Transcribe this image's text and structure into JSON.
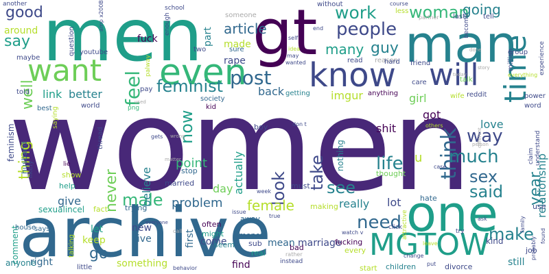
{
  "palette": {
    "purple": "#440154",
    "indigo": "#482878",
    "blue": "#3e4989",
    "slate": "#31688e",
    "teal": "#26828e",
    "green": "#1f9e89",
    "mint": "#35b779",
    "lime": "#6ece58",
    "yellow": "#b5de2b",
    "grey": "#aaaaaa"
  },
  "words": [
    {
      "text": "women",
      "color": "#482878",
      "weight": 100
    },
    {
      "text": "men",
      "color": "#1f9e89",
      "weight": 60
    },
    {
      "text": "archive",
      "color": "#31688e",
      "weight": 55
    },
    {
      "text": "gt",
      "color": "#440154",
      "weight": 52
    },
    {
      "text": "man",
      "color": "#26828e",
      "weight": 45
    },
    {
      "text": "one",
      "color": "#1f9e89",
      "weight": 44
    },
    {
      "text": "even",
      "color": "#35b779",
      "weight": 40
    },
    {
      "text": "want",
      "color": "#6ece58",
      "weight": 38
    },
    {
      "text": "know",
      "color": "#3e4989",
      "weight": 38
    },
    {
      "text": "will",
      "color": "#3e4989",
      "weight": 36
    },
    {
      "text": "time",
      "color": "#26828e",
      "weight": 36
    },
    {
      "text": "MGTOW",
      "color": "#1f9e89",
      "weight": 30
    },
    {
      "text": "post",
      "color": "#31688e",
      "weight": 24
    },
    {
      "text": "feel",
      "color": "#35b779",
      "weight": 22
    },
    {
      "text": "feminist",
      "color": "#26828e",
      "weight": 20
    },
    {
      "text": "people",
      "color": "#3e4989",
      "weight": 18
    },
    {
      "text": "woman",
      "color": "#35b779",
      "weight": 17
    },
    {
      "text": "work",
      "color": "#1f9e89",
      "weight": 17
    },
    {
      "text": "think",
      "color": "#31688e",
      "weight": 20
    },
    {
      "text": "life",
      "color": "#26828e",
      "weight": 18
    },
    {
      "text": "much",
      "color": "#26828e",
      "weight": 17
    },
    {
      "text": "way",
      "color": "#3e4989",
      "weight": 17
    },
    {
      "text": "sex",
      "color": "#31688e",
      "weight": 17
    },
    {
      "text": "said",
      "color": "#26828e",
      "weight": 16
    },
    {
      "text": "need",
      "color": "#31688e",
      "weight": 18
    },
    {
      "text": "see",
      "color": "#26828e",
      "weight": 16
    },
    {
      "text": "look",
      "color": "#3e4989",
      "weight": 16
    },
    {
      "text": "take",
      "color": "#3e4989",
      "weight": 16
    },
    {
      "text": "male",
      "color": "#35b779",
      "weight": 16
    },
    {
      "text": "female",
      "color": "#b5de2b",
      "weight": 15
    },
    {
      "text": "now",
      "color": "#1f9e89",
      "weight": 16
    },
    {
      "text": "never",
      "color": "#6ece58",
      "weight": 16
    },
    {
      "text": "make",
      "color": "#26828e",
      "weight": 16
    },
    {
      "text": "year",
      "color": "#26828e",
      "weight": 15
    },
    {
      "text": "good",
      "color": "#3e4989",
      "weight": 13
    },
    {
      "text": "say",
      "color": "#1f9e89",
      "weight": 14
    },
    {
      "text": "well",
      "color": "#6ece58",
      "weight": 14
    },
    {
      "text": "guy",
      "color": "#26828e",
      "weight": 13
    },
    {
      "text": "many",
      "color": "#1f9e89",
      "weight": 13
    },
    {
      "text": "going",
      "color": "#26828e",
      "weight": 12
    },
    {
      "text": "article",
      "color": "#31688e",
      "weight": 12
    },
    {
      "text": "thing",
      "color": "#b5de2b",
      "weight": 14
    },
    {
      "text": "go",
      "color": "#31688e",
      "weight": 14
    },
    {
      "text": "problem",
      "color": "#31688e",
      "weight": 11
    },
    {
      "text": "point",
      "color": "#35b779",
      "weight": 11
    },
    {
      "text": "give",
      "color": "#31688e",
      "weight": 10
    },
    {
      "text": "believe",
      "color": "#26828e",
      "weight": 10
    },
    {
      "text": "day",
      "color": "#6ece58",
      "weight": 10
    },
    {
      "text": "actually",
      "color": "#1f9e89",
      "weight": 10
    },
    {
      "text": "link",
      "color": "#1f9e89",
      "weight": 10
    },
    {
      "text": "better",
      "color": "#26828e",
      "weight": 9
    },
    {
      "text": "imgur",
      "color": "#b5de2b",
      "weight": 11
    },
    {
      "text": "back",
      "color": "#31688e",
      "weight": 11
    },
    {
      "text": "really",
      "color": "#26828e",
      "weight": 10
    },
    {
      "text": "lot",
      "color": "#3e4989",
      "weight": 10
    },
    {
      "text": "girl",
      "color": "#6ece58",
      "weight": 10
    },
    {
      "text": "got",
      "color": "#440154",
      "weight": 10
    },
    {
      "text": "shit",
      "color": "#440154",
      "weight": 10
    },
    {
      "text": "love",
      "color": "#26828e",
      "weight": 9
    },
    {
      "text": "u",
      "color": "#b5de2b",
      "weight": 12
    },
    {
      "text": "relationship",
      "color": "#26828e",
      "weight": 9
    },
    {
      "text": "made",
      "color": "#b5de2b",
      "weight": 8
    },
    {
      "text": "fuck",
      "color": "#440154",
      "weight": 9
    },
    {
      "text": "rape",
      "color": "#3e4989",
      "weight": 8
    },
    {
      "text": "around",
      "color": "#b5de2b",
      "weight": 8
    },
    {
      "text": "part",
      "color": "#26828e",
      "weight": 9
    },
    {
      "text": "someone",
      "color": "#aaaaaa",
      "weight": 6
    },
    {
      "text": "let",
      "color": "#1f9e89",
      "weight": 9
    },
    {
      "text": "keep",
      "color": "#b5de2b",
      "weight": 9
    },
    {
      "text": "new",
      "color": "#3e4989",
      "weight": 9
    },
    {
      "text": "live",
      "color": "#31688e",
      "weight": 9
    },
    {
      "text": "first",
      "color": "#31688e",
      "weight": 9
    },
    {
      "text": "come",
      "color": "#3e4989",
      "weight": 9
    },
    {
      "text": "find",
      "color": "#440154",
      "weight": 8
    },
    {
      "text": "mean",
      "color": "#31688e",
      "weight": 9
    },
    {
      "text": "marriage",
      "color": "#3e4989",
      "weight": 9
    },
    {
      "text": "something",
      "color": "#b5de2b",
      "weight": 9
    },
    {
      "text": "right",
      "color": "#31688e",
      "weight": 9
    },
    {
      "text": "still",
      "color": "#26828e",
      "weight": 9
    },
    {
      "text": "comment",
      "color": "#1f9e89",
      "weight": 8
    },
    {
      "text": "anyone",
      "color": "#26828e",
      "weight": 7
    },
    {
      "text": "start",
      "color": "#b5de2b",
      "weight": 7
    },
    {
      "text": "children",
      "color": "#26828e",
      "weight": 7
    },
    {
      "text": "divorce",
      "color": "#3e4989",
      "weight": 7
    },
    {
      "text": "job",
      "color": "#3e4989",
      "weight": 6
    },
    {
      "text": "kind",
      "color": "#3e4989",
      "weight": 7
    },
    {
      "text": "feminism",
      "color": "#3e4989",
      "weight": 7
    },
    {
      "text": "husband",
      "color": "#31688e",
      "weight": 6
    },
    {
      "text": "sexualincel",
      "color": "#1f9e89",
      "weight": 6
    },
    {
      "text": "fact",
      "color": "#b5de2b",
      "weight": 6
    },
    {
      "text": "trying",
      "color": "#31688e",
      "weight": 6
    },
    {
      "text": "help",
      "color": "#1f9e89",
      "weight": 6
    },
    {
      "text": "show",
      "color": "#b5de2b",
      "weight": 6
    },
    {
      "text": "married",
      "color": "#3e4989",
      "weight": 6
    },
    {
      "text": "stop",
      "color": "#31688e",
      "weight": 6
    },
    {
      "text": "boy",
      "color": "#3e4989",
      "weight": 6
    },
    {
      "text": "nothing",
      "color": "#26828e",
      "weight": 7
    },
    {
      "text": "thought",
      "color": "#6ece58",
      "weight": 6
    },
    {
      "text": "must",
      "color": "#3e4989",
      "weight": 6
    },
    {
      "text": "hate",
      "color": "#31688e",
      "weight": 6
    },
    {
      "text": "making",
      "color": "#b5de2b",
      "weight": 6
    },
    {
      "text": "fucking",
      "color": "#440154",
      "weight": 6
    },
    {
      "text": "every",
      "color": "#b5de2b",
      "weight": 6
    },
    {
      "text": "bad",
      "color": "#440154",
      "weight": 6
    },
    {
      "text": "real",
      "color": "#1f9e89",
      "weight": 6
    },
    {
      "text": "sub",
      "color": "#3e4989",
      "weight": 6
    },
    {
      "text": "money",
      "color": "#31688e",
      "weight": 6
    },
    {
      "text": "seem",
      "color": "#26828e",
      "weight": 6
    },
    {
      "text": "might",
      "color": "#1f9e89",
      "weight": 6
    },
    {
      "text": "often",
      "color": "#440154",
      "weight": 6
    },
    {
      "text": "away",
      "color": "#31688e",
      "weight": 6
    },
    {
      "text": "talking",
      "color": "#b5de2b",
      "weight": 5
    },
    {
      "text": "little",
      "color": "#3e4989",
      "weight": 6
    },
    {
      "text": "house",
      "color": "#31688e",
      "weight": 5
    },
    {
      "text": "says",
      "color": "#31688e",
      "weight": 5
    },
    {
      "text": "question",
      "color": "#3e4989",
      "weight": 5
    },
    {
      "text": "told",
      "color": "#3e4989",
      "weight": 5
    },
    {
      "text": "maybe",
      "color": "#3e4989",
      "weight": 5
    },
    {
      "text": "best",
      "color": "#31688e",
      "weight": 5
    },
    {
      "text": "saying",
      "color": "#b5de2b",
      "weight": 5
    },
    {
      "text": "likely",
      "color": "#3e4989",
      "weight": 5
    },
    {
      "text": "lie",
      "color": "#440154",
      "weight": 4
    },
    {
      "text": "youtube",
      "color": "#3e4989",
      "weight": 5
    },
    {
      "text": "two",
      "color": "#3e4989",
      "weight": 5
    },
    {
      "text": "sure",
      "color": "#31688e",
      "weight": 5
    },
    {
      "text": "society",
      "color": "#31688e",
      "weight": 5
    },
    {
      "text": "kid",
      "color": "#440154",
      "weight": 5
    },
    {
      "text": "world",
      "color": "#3e4989",
      "weight": 5
    },
    {
      "text": "thread",
      "color": "#3e4989",
      "weight": 5
    },
    {
      "text": "pay",
      "color": "#3e4989",
      "weight": 5
    },
    {
      "text": "png",
      "color": "#35b779",
      "weight": 4
    },
    {
      "text": "used",
      "color": "#aaaaaa",
      "weight": 4
    },
    {
      "text": "palway",
      "color": "#b5de2b",
      "weight": 4
    },
    {
      "text": "getting",
      "color": "#26828e",
      "weight": 5
    },
    {
      "text": "read",
      "color": "#3e4989",
      "weight": 5
    },
    {
      "text": "reason",
      "color": "#aaaaaa",
      "weight": 5
    },
    {
      "text": "hard",
      "color": "#3e4989",
      "weight": 5
    },
    {
      "text": "friend",
      "color": "#3e4989",
      "weight": 5
    },
    {
      "text": "care",
      "color": "#3e4989",
      "weight": 5
    },
    {
      "text": "anything",
      "color": "#440154",
      "weight": 5
    },
    {
      "text": "talk",
      "color": "#6ece58",
      "weight": 5
    },
    {
      "text": "today",
      "color": "#aaaaaa",
      "weight": 4
    },
    {
      "text": "story",
      "color": "#aaaaaa",
      "weight": 4
    },
    {
      "text": "wife",
      "color": "#b5de2b",
      "weight": 5
    },
    {
      "text": "reddit",
      "color": "#3e4989",
      "weight": 5
    },
    {
      "text": "power",
      "color": "#3e4989",
      "weight": 5
    },
    {
      "text": "word",
      "color": "#3e4989",
      "weight": 5
    },
    {
      "text": "others",
      "color": "#b5de2b",
      "weight": 4
    },
    {
      "text": "person",
      "color": "#aaaaaa",
      "weight": 4
    },
    {
      "text": "different",
      "color": "#aaaaaa",
      "weight": 4
    },
    {
      "text": "claim",
      "color": "#3e4989",
      "weight": 4
    },
    {
      "text": "understand",
      "color": "#3e4989",
      "weight": 4
    },
    {
      "text": "case",
      "color": "#3e4989",
      "weight": 4
    },
    {
      "text": "use",
      "color": "#3e4989",
      "weight": 5
    },
    {
      "text": "family",
      "color": "#3e4989",
      "weight": 4
    },
    {
      "text": "probably",
      "color": "#3e4989",
      "weight": 4
    },
    {
      "text": "found",
      "color": "#3e4989",
      "weight": 4
    },
    {
      "text": "ask",
      "color": "#3e4989",
      "weight": 4
    },
    {
      "text": "try",
      "color": "#3e4989",
      "weight": 4
    },
    {
      "text": "attractive",
      "color": "#b5de2b",
      "weight": 4
    },
    {
      "text": "click",
      "color": "#3e4989",
      "weight": 4
    },
    {
      "text": "watch v",
      "color": "#3e4989",
      "weight": 4
    },
    {
      "text": "true",
      "color": "#3e4989",
      "weight": 4
    },
    {
      "text": "leave",
      "color": "#b5de2b",
      "weight": 4
    },
    {
      "text": "change",
      "color": "#3e4989",
      "weight": 4
    },
    {
      "text": "put",
      "color": "#3e4989",
      "weight": 4
    },
    {
      "text": "rather",
      "color": "#aaaaaa",
      "weight": 4
    },
    {
      "text": "instead",
      "color": "#3e4989",
      "weight": 4
    },
    {
      "text": "behavior",
      "color": "#3e4989",
      "weight": 4
    },
    {
      "text": "call",
      "color": "#aaaaaa",
      "weight": 4
    },
    {
      "text": "everyone",
      "color": "#3e4989",
      "weight": 4
    },
    {
      "text": "issue",
      "color": "#3e4989",
      "weight": 4
    },
    {
      "text": "week",
      "color": "#3e4989",
      "weight": 4
    },
    {
      "text": "matter",
      "color": "#aaaaaa",
      "weight": 4
    },
    {
      "text": "wrong",
      "color": "#aaaaaa",
      "weight": 4
    },
    {
      "text": "gets",
      "color": "#3e4989",
      "weight": 4
    },
    {
      "text": "don t",
      "color": "#3e4989",
      "weight": 4
    },
    {
      "text": "idea",
      "color": "#b5de2b",
      "weight": 4
    },
    {
      "text": "self",
      "color": "#3e4989",
      "weight": 4
    },
    {
      "text": "end",
      "color": "#3e4989",
      "weight": 4
    },
    {
      "text": "wanted",
      "color": "#3e4989",
      "weight": 4
    },
    {
      "text": "may",
      "color": "#3e4989",
      "weight": 4
    },
    {
      "text": "without",
      "color": "#3e4989",
      "weight": 5
    },
    {
      "text": "course",
      "color": "#3e4989",
      "weight": 4
    },
    {
      "text": "less",
      "color": "#b5de2b",
      "weight": 4
    },
    {
      "text": "partner",
      "color": "#aaaaaa",
      "weight": 4
    },
    {
      "text": "last",
      "color": "#3e4989",
      "weight": 4
    },
    {
      "text": "tell",
      "color": "#3e4989",
      "weight": 4
    },
    {
      "text": "become",
      "color": "#3e4989",
      "weight": 4
    },
    {
      "text": "done",
      "color": "#aaaaaa",
      "weight": 4
    },
    {
      "text": "group",
      "color": "#3e4989",
      "weight": 4
    },
    {
      "text": "million",
      "color": "#3e4989",
      "weight": 4
    },
    {
      "text": "experience",
      "color": "#3e4989",
      "weight": 4
    },
    {
      "text": "everything",
      "color": "#b5de2b",
      "weight": 4
    },
    {
      "text": "another",
      "color": "#3e4989",
      "weight": 4
    },
    {
      "text": "amp x200B",
      "color": "#3e4989",
      "weight": 3
    },
    {
      "text": "enough",
      "color": "#3e4989",
      "weight": 4
    },
    {
      "text": "school",
      "color": "#3e4989",
      "weight": 4
    }
  ]
}
